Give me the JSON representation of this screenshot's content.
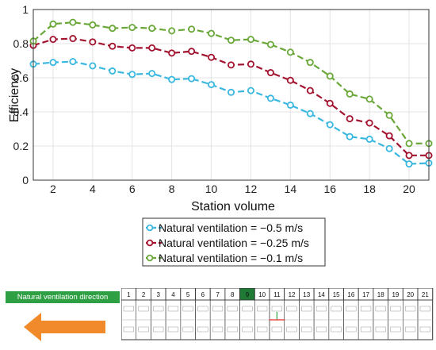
{
  "chart_data": {
    "type": "line",
    "xlabel": "Station volume",
    "ylabel": "Efficiency",
    "xlim": [
      1,
      21
    ],
    "ylim": [
      0,
      1
    ],
    "xticks": [
      2,
      4,
      6,
      8,
      10,
      12,
      14,
      16,
      18,
      20
    ],
    "yticks": [
      0,
      0.2,
      0.4,
      0.6,
      0.8,
      1
    ],
    "grid": true,
    "legend_placement": "below-center",
    "x": [
      1,
      2,
      3,
      4,
      5,
      6,
      7,
      8,
      9,
      10,
      11,
      12,
      13,
      14,
      15,
      16,
      17,
      18,
      19,
      20,
      21
    ],
    "series": [
      {
        "name": "Natural ventilation = −0.5 m/s",
        "color": "#3ab8e0",
        "values": [
          0.68,
          0.69,
          0.695,
          0.67,
          0.64,
          0.62,
          0.625,
          0.59,
          0.595,
          0.56,
          0.515,
          0.525,
          0.48,
          0.44,
          0.39,
          0.325,
          0.255,
          0.24,
          0.185,
          0.095,
          0.1
        ]
      },
      {
        "name": "Natural ventilation = −0.25 m/s",
        "color": "#a3122e",
        "values": [
          0.79,
          0.825,
          0.83,
          0.81,
          0.785,
          0.775,
          0.775,
          0.745,
          0.755,
          0.72,
          0.675,
          0.68,
          0.63,
          0.585,
          0.525,
          0.45,
          0.36,
          0.335,
          0.26,
          0.145,
          0.145
        ]
      },
      {
        "name": "Natural ventilation = −0.1 m/s",
        "color": "#6aa83a",
        "values": [
          0.815,
          0.915,
          0.925,
          0.91,
          0.89,
          0.895,
          0.89,
          0.875,
          0.885,
          0.86,
          0.82,
          0.825,
          0.795,
          0.75,
          0.69,
          0.61,
          0.505,
          0.475,
          0.38,
          0.215,
          0.215
        ]
      }
    ]
  },
  "station_strip": {
    "banner": "Natural ventilation direction",
    "cells": [
      "1",
      "2",
      "3",
      "4",
      "5",
      "6",
      "7",
      "8",
      "9",
      "10",
      "11",
      "12",
      "13",
      "14",
      "15",
      "16",
      "17",
      "18",
      "19",
      "20",
      "21"
    ],
    "highlight": "9",
    "highlight_color": "#1e7a34",
    "arrow_color": "#f08a2b"
  }
}
